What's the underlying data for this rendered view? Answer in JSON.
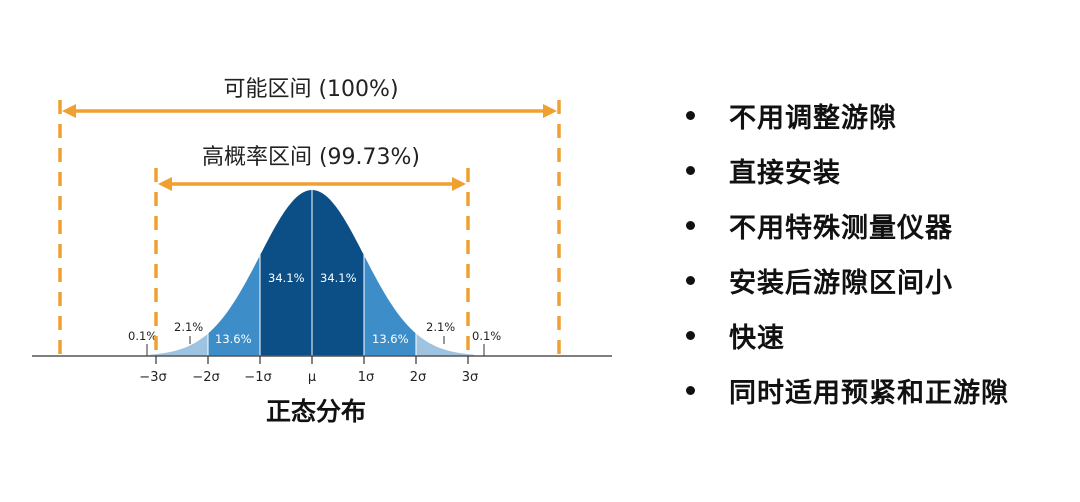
{
  "diagram": {
    "title": "正态分布",
    "range_full_label": "可能区间 (100%)",
    "range_high_label": "高概率区间 (99.73%)",
    "sigma_ticks": [
      "−3σ",
      "−2σ",
      "−1σ",
      "μ",
      "1σ",
      "2σ",
      "3σ"
    ],
    "bands": [
      {
        "label": "0.1%",
        "side": "left-outer"
      },
      {
        "label": "2.1%",
        "side": "left-tail"
      },
      {
        "label": "13.6%",
        "side": "left-mid"
      },
      {
        "label": "34.1%",
        "side": "left-center"
      },
      {
        "label": "34.1%",
        "side": "right-center"
      },
      {
        "label": "13.6%",
        "side": "right-mid"
      },
      {
        "label": "2.1%",
        "side": "right-tail"
      },
      {
        "label": "0.1%",
        "side": "right-outer"
      }
    ],
    "colors": {
      "arrow": "#F0A030",
      "center_band": "#0B4F86",
      "mid_band": "#3C8DC8",
      "tail_band": "#9DC3E1",
      "axis": "#555555"
    }
  },
  "bullets": [
    {
      "text": "不用调整游隙"
    },
    {
      "text": "直接安装"
    },
    {
      "text": "不用特殊测量仪器"
    },
    {
      "text": "安装后游隙区间小"
    },
    {
      "text": "快速"
    },
    {
      "text": "同时适用预紧和正游隙"
    }
  ]
}
